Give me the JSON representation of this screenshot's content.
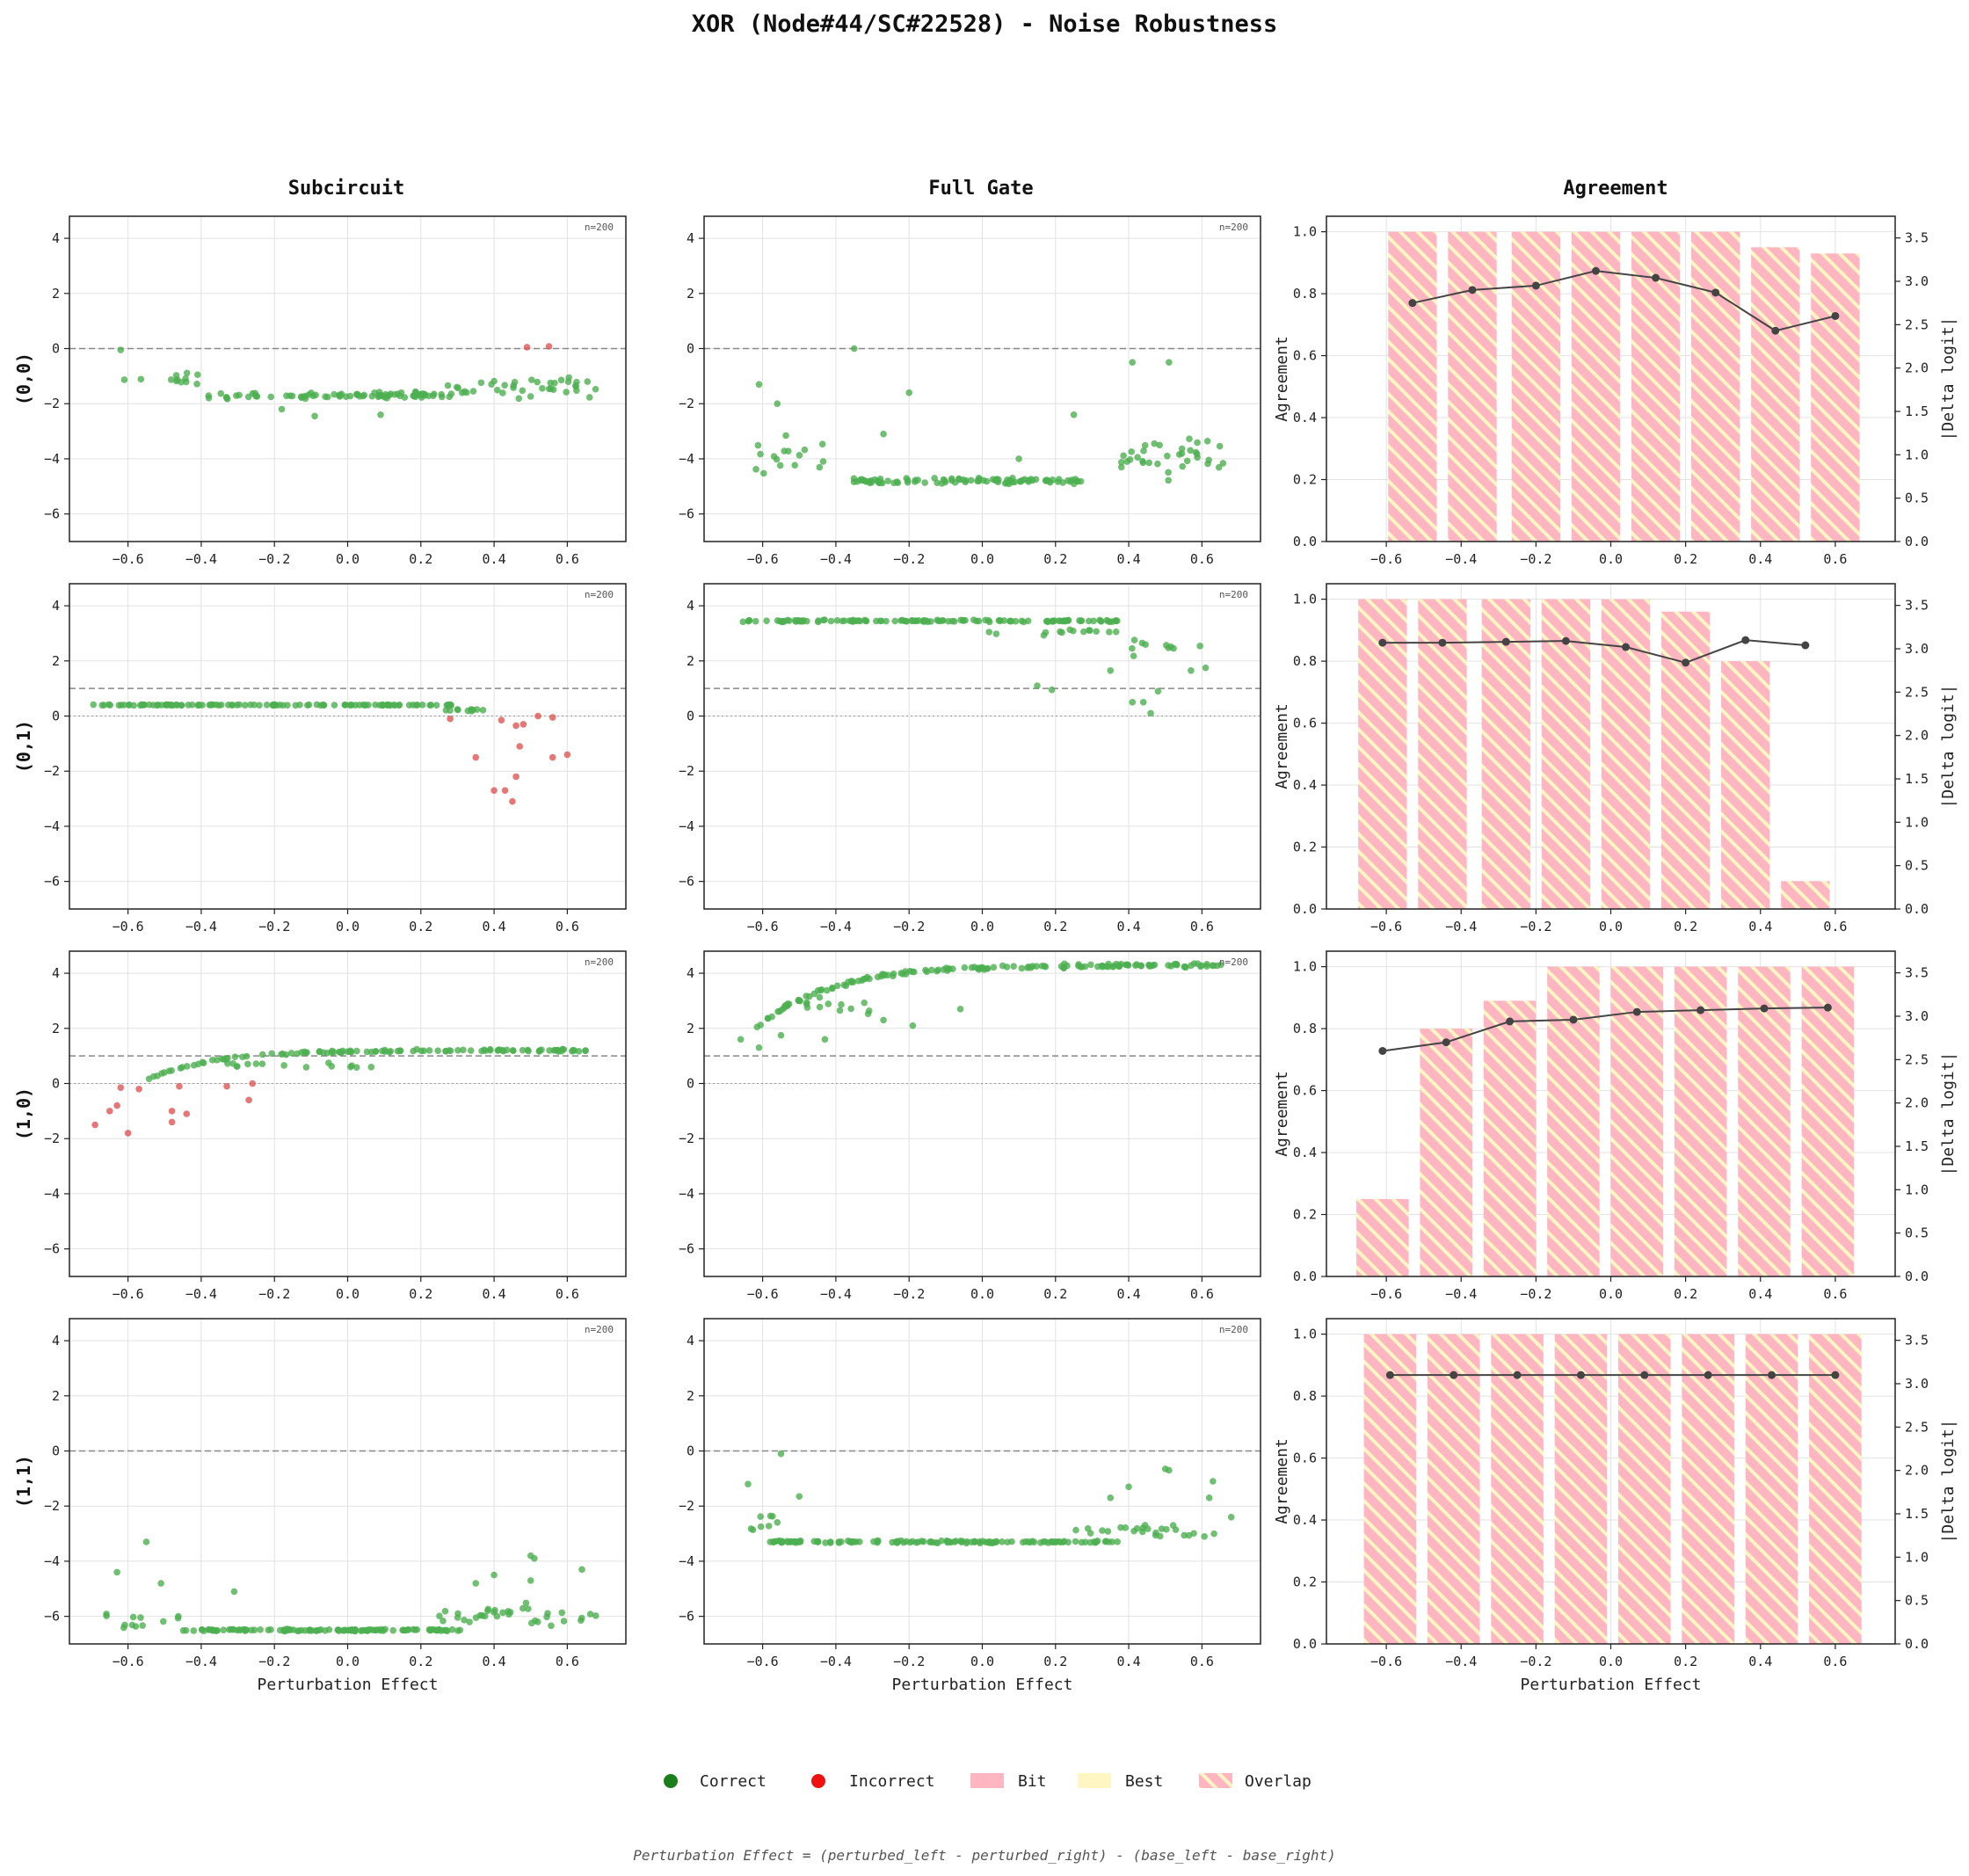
{
  "figure": {
    "title": "XOR (Node#44/SC#22528) - Noise Robustness",
    "column_titles": [
      "Subcircuit",
      "Full Gate",
      "Agreement"
    ],
    "row_labels": [
      "(0,0)",
      "(0,1)",
      "(1,0)",
      "(1,1)"
    ],
    "x_label": "Perturbation Effect",
    "agreement_ylabel": "Agreement",
    "delta_ylabel": "|Delta logit|",
    "n_label": "n=200",
    "footnote": "Perturbation Effect = (perturbed_left - perturbed_right) - (base_left - base_right)"
  },
  "legend": [
    {
      "label": "Correct",
      "kind": "dot",
      "color": "#1a7f1a"
    },
    {
      "label": "Incorrect",
      "kind": "dot",
      "color": "#ee1111"
    },
    {
      "label": "Bit",
      "kind": "patch",
      "color": "#ffb6c1"
    },
    {
      "label": "Best",
      "kind": "patch",
      "color": "#fff6c4"
    },
    {
      "label": "Overlap",
      "kind": "hatch",
      "color": "#ffb6c1"
    }
  ],
  "colors": {
    "correct": "#4caf50",
    "incorrect": "#e05555",
    "bit": "#ffb6c1",
    "best": "#fff6c4",
    "line": "#444444"
  },
  "chart_data": {
    "type": "scatter",
    "scatter_xlim": [
      -0.76,
      0.76
    ],
    "scatter_ylim": [
      -7,
      4.8
    ],
    "scatter_xticks": [
      -0.6,
      -0.4,
      -0.2,
      0.0,
      0.2,
      0.4,
      0.6
    ],
    "scatter_xtick_labels": [
      "−0.6",
      "−0.4",
      "−0.2",
      "0.0",
      "0.2",
      "0.4",
      "0.6"
    ],
    "scatter_yticks": [
      4,
      2,
      0,
      -2,
      -4,
      -6
    ],
    "scatter_ytick_labels": [
      "4",
      "2",
      "0",
      "−2",
      "−4",
      "−6"
    ],
    "agreement_ylim": [
      0,
      1.05
    ],
    "agreement_yticks": [
      0,
      0.2,
      0.4,
      0.6,
      0.8,
      1.0
    ],
    "agreement_ytick_labels": [
      "0.0",
      "0.2",
      "0.4",
      "0.6",
      "0.8",
      "1.0"
    ],
    "delta_ylim": [
      0,
      3.75
    ],
    "delta_yticks": [
      0,
      0.5,
      1.0,
      1.5,
      2.0,
      2.5,
      3.0,
      3.5
    ],
    "delta_ytick_labels": [
      "0.0",
      "0.5",
      "1.0",
      "1.5",
      "2.0",
      "2.5",
      "3.0",
      "3.5"
    ],
    "rows": [
      {
        "input": "(0,0)",
        "threshold": 0,
        "subcircuit": {
          "clusters": [
            {
              "x": [
                -0.38,
                0.26
              ],
              "y": -1.7,
              "spread": 0.15,
              "n": 80,
              "status": "correct"
            },
            {
              "x": [
                -0.62,
                -0.4
              ],
              "y": -1.1,
              "spread": 0.55,
              "n": 12,
              "status": "correct"
            },
            {
              "x": [
                0.26,
                0.68
              ],
              "y": -1.4,
              "spread": 0.5,
              "n": 40,
              "status": "correct"
            }
          ],
          "points": [
            {
              "x": 0.49,
              "y": 0.05,
              "status": "incorrect"
            },
            {
              "x": 0.55,
              "y": 0.08,
              "status": "incorrect"
            },
            {
              "x": -0.62,
              "y": -0.05,
              "status": "correct"
            },
            {
              "x": -0.18,
              "y": -2.2,
              "status": "correct"
            },
            {
              "x": -0.09,
              "y": -2.45,
              "status": "correct"
            },
            {
              "x": 0.09,
              "y": -2.4,
              "status": "correct"
            }
          ]
        },
        "full_gate": {
          "clusters": [
            {
              "x": [
                -0.36,
                0.28
              ],
              "y": -4.8,
              "spread": 0.13,
              "n": 95,
              "status": "correct"
            },
            {
              "x": [
                -0.62,
                -0.42
              ],
              "y": -3.9,
              "spread": 0.9,
              "n": 16,
              "status": "correct"
            },
            {
              "x": [
                0.38,
                0.66
              ],
              "y": -4.0,
              "spread": 1.0,
              "n": 35,
              "status": "correct"
            }
          ],
          "points": [
            {
              "x": -0.35,
              "y": 0.0,
              "status": "correct"
            },
            {
              "x": -0.61,
              "y": -1.3,
              "status": "correct"
            },
            {
              "x": -0.56,
              "y": -2.0,
              "status": "correct"
            },
            {
              "x": -0.2,
              "y": -1.6,
              "status": "correct"
            },
            {
              "x": 0.41,
              "y": -0.5,
              "status": "correct"
            },
            {
              "x": 0.51,
              "y": -0.5,
              "status": "correct"
            },
            {
              "x": 0.25,
              "y": -2.4,
              "status": "correct"
            },
            {
              "x": -0.27,
              "y": -3.1,
              "status": "correct"
            },
            {
              "x": 0.1,
              "y": -4.0,
              "status": "correct"
            }
          ]
        },
        "agreement": {
          "bins": [
            -0.53,
            -0.37,
            -0.2,
            -0.04,
            0.12,
            0.28,
            0.44,
            0.6
          ],
          "bar_width": 0.13,
          "values": [
            1.0,
            1.0,
            1.0,
            1.0,
            1.0,
            1.0,
            0.95,
            0.93
          ],
          "delta": [
            2.75,
            2.9,
            2.95,
            3.12,
            3.04,
            2.87,
            2.43,
            2.6
          ]
        }
      },
      {
        "input": "(0,1)",
        "threshold": 1,
        "subcircuit": {
          "clusters": [
            {
              "x": [
                -0.7,
                0.3
              ],
              "y": 0.4,
              "spread": 0.02,
              "n": 120,
              "status": "correct"
            },
            {
              "x": [
                0.24,
                0.4
              ],
              "y": 0.2,
              "spread": 0.1,
              "n": 10,
              "status": "correct"
            }
          ],
          "points": [
            {
              "x": 0.35,
              "y": -1.5,
              "status": "incorrect"
            },
            {
              "x": 0.4,
              "y": -2.7,
              "status": "incorrect"
            },
            {
              "x": 0.43,
              "y": -2.7,
              "status": "incorrect"
            },
            {
              "x": 0.45,
              "y": -3.1,
              "status": "incorrect"
            },
            {
              "x": 0.46,
              "y": -2.2,
              "status": "incorrect"
            },
            {
              "x": 0.47,
              "y": -1.1,
              "status": "incorrect"
            },
            {
              "x": 0.46,
              "y": -0.35,
              "status": "incorrect"
            },
            {
              "x": 0.48,
              "y": -0.3,
              "status": "incorrect"
            },
            {
              "x": 0.52,
              "y": 0.0,
              "status": "incorrect"
            },
            {
              "x": 0.56,
              "y": -0.05,
              "status": "incorrect"
            },
            {
              "x": 0.56,
              "y": -1.5,
              "status": "incorrect"
            },
            {
              "x": 0.6,
              "y": -1.4,
              "status": "incorrect"
            },
            {
              "x": 0.28,
              "y": -0.1,
              "status": "incorrect"
            },
            {
              "x": 0.42,
              "y": -0.15,
              "status": "incorrect"
            }
          ]
        },
        "full_gate": {
          "clusters": [
            {
              "x": [
                -0.66,
                0.38
              ],
              "y": 3.45,
              "spread": 0.05,
              "n": 130,
              "status": "correct"
            },
            {
              "x": [
                0.0,
                0.4
              ],
              "y": 3.1,
              "spread": 0.25,
              "n": 14,
              "status": "correct"
            },
            {
              "x": [
                0.4,
                0.6
              ],
              "y": 2.5,
              "spread": 0.6,
              "n": 10,
              "status": "correct"
            }
          ],
          "points": [
            {
              "x": 0.15,
              "y": 1.1,
              "status": "correct"
            },
            {
              "x": 0.19,
              "y": 0.95,
              "status": "correct"
            },
            {
              "x": 0.41,
              "y": 0.5,
              "status": "correct"
            },
            {
              "x": 0.44,
              "y": 0.5,
              "status": "correct"
            },
            {
              "x": 0.46,
              "y": 0.1,
              "status": "correct"
            },
            {
              "x": 0.48,
              "y": 0.9,
              "status": "correct"
            },
            {
              "x": 0.35,
              "y": 1.65,
              "status": "correct"
            },
            {
              "x": 0.61,
              "y": 1.75,
              "status": "correct"
            },
            {
              "x": 0.57,
              "y": 1.65,
              "status": "correct"
            }
          ]
        },
        "agreement": {
          "bins": [
            -0.61,
            -0.45,
            -0.28,
            -0.12,
            0.04,
            0.2,
            0.36,
            0.52
          ],
          "bar_width": 0.13,
          "values": [
            1.0,
            1.0,
            1.0,
            1.0,
            1.0,
            0.96,
            0.8,
            0.09
          ],
          "delta": [
            3.07,
            3.07,
            3.08,
            3.09,
            3.02,
            2.84,
            3.1,
            3.04
          ]
        }
      },
      {
        "input": "(1,0)",
        "threshold": 1,
        "subcircuit": {
          "curve": {
            "x": [
              -0.55,
              0.66
            ],
            "y0": 0.1,
            "y1": 1.2,
            "rate": 6,
            "n": 110,
            "spread": 0.06,
            "status": "correct"
          },
          "clusters": [
            {
              "x": [
                -0.35,
                0.1
              ],
              "y": 0.65,
              "spread": 0.2,
              "n": 15,
              "status": "correct"
            }
          ],
          "points": [
            {
              "x": -0.69,
              "y": -1.5,
              "status": "incorrect"
            },
            {
              "x": -0.65,
              "y": -1.0,
              "status": "incorrect"
            },
            {
              "x": -0.63,
              "y": -0.8,
              "status": "incorrect"
            },
            {
              "x": -0.62,
              "y": -0.15,
              "status": "incorrect"
            },
            {
              "x": -0.6,
              "y": -1.8,
              "status": "incorrect"
            },
            {
              "x": -0.57,
              "y": -0.2,
              "status": "incorrect"
            },
            {
              "x": -0.48,
              "y": -1.0,
              "status": "incorrect"
            },
            {
              "x": -0.48,
              "y": -1.4,
              "status": "incorrect"
            },
            {
              "x": -0.46,
              "y": -0.1,
              "status": "incorrect"
            },
            {
              "x": -0.44,
              "y": -1.1,
              "status": "incorrect"
            },
            {
              "x": -0.33,
              "y": -0.1,
              "status": "incorrect"
            },
            {
              "x": -0.27,
              "y": -0.6,
              "status": "incorrect"
            },
            {
              "x": -0.26,
              "y": 0.0,
              "status": "incorrect"
            }
          ]
        },
        "full_gate": {
          "curve": {
            "x": [
              -0.62,
              0.66
            ],
            "y0": 2.0,
            "y1": 4.3,
            "rate": 5,
            "n": 150,
            "spread": 0.1,
            "status": "correct"
          },
          "clusters": [
            {
              "x": [
                -0.55,
                -0.3
              ],
              "y": 2.8,
              "spread": 0.6,
              "n": 12,
              "status": "correct"
            }
          ],
          "points": [
            {
              "x": -0.66,
              "y": 1.6,
              "status": "correct"
            },
            {
              "x": -0.61,
              "y": 1.3,
              "status": "correct"
            },
            {
              "x": -0.55,
              "y": 1.75,
              "status": "correct"
            },
            {
              "x": -0.43,
              "y": 1.6,
              "status": "correct"
            },
            {
              "x": -0.27,
              "y": 2.3,
              "status": "correct"
            },
            {
              "x": -0.19,
              "y": 2.1,
              "status": "correct"
            },
            {
              "x": -0.06,
              "y": 2.7,
              "status": "correct"
            }
          ]
        },
        "agreement": {
          "bins": [
            -0.61,
            -0.44,
            -0.27,
            -0.1,
            0.07,
            0.24,
            0.41,
            0.58
          ],
          "bar_width": 0.14,
          "values": [
            0.25,
            0.8,
            0.89,
            1.0,
            1.0,
            1.0,
            1.0,
            1.0
          ],
          "delta": [
            2.6,
            2.7,
            2.94,
            2.96,
            3.05,
            3.07,
            3.09,
            3.1
          ]
        }
      },
      {
        "input": "(1,1)",
        "threshold": 0,
        "subcircuit": {
          "clusters": [
            {
              "x": [
                -0.45,
                0.32
              ],
              "y": -6.5,
              "spread": 0.05,
              "n": 120,
              "status": "correct"
            },
            {
              "x": [
                -0.66,
                -0.45
              ],
              "y": -6.2,
              "spread": 0.5,
              "n": 12,
              "status": "correct"
            },
            {
              "x": [
                0.25,
                0.68
              ],
              "y": -6.0,
              "spread": 0.6,
              "n": 35,
              "status": "correct"
            }
          ],
          "points": [
            {
              "x": -0.55,
              "y": -3.3,
              "status": "correct"
            },
            {
              "x": -0.63,
              "y": -4.4,
              "status": "correct"
            },
            {
              "x": -0.31,
              "y": -5.1,
              "status": "correct"
            },
            {
              "x": -0.51,
              "y": -4.8,
              "status": "correct"
            },
            {
              "x": 0.35,
              "y": -4.8,
              "status": "correct"
            },
            {
              "x": 0.4,
              "y": -4.5,
              "status": "correct"
            },
            {
              "x": 0.5,
              "y": -3.8,
              "status": "correct"
            },
            {
              "x": 0.51,
              "y": -3.9,
              "status": "correct"
            },
            {
              "x": 0.64,
              "y": -4.3,
              "status": "correct"
            },
            {
              "x": 0.5,
              "y": -4.7,
              "status": "correct"
            }
          ]
        },
        "full_gate": {
          "clusters": [
            {
              "x": [
                -0.58,
                0.38
              ],
              "y": -3.3,
              "spread": 0.06,
              "n": 130,
              "status": "correct"
            },
            {
              "x": [
                0.25,
                0.65
              ],
              "y": -2.9,
              "spread": 0.3,
              "n": 25,
              "status": "correct"
            },
            {
              "x": [
                -0.66,
                -0.5
              ],
              "y": -2.6,
              "spread": 0.5,
              "n": 8,
              "status": "correct"
            }
          ],
          "points": [
            {
              "x": -0.55,
              "y": -0.1,
              "status": "correct"
            },
            {
              "x": -0.64,
              "y": -1.2,
              "status": "correct"
            },
            {
              "x": -0.5,
              "y": -1.65,
              "status": "correct"
            },
            {
              "x": 0.35,
              "y": -1.7,
              "status": "correct"
            },
            {
              "x": 0.4,
              "y": -1.3,
              "status": "correct"
            },
            {
              "x": 0.5,
              "y": -0.65,
              "status": "correct"
            },
            {
              "x": 0.51,
              "y": -0.7,
              "status": "correct"
            },
            {
              "x": 0.63,
              "y": -1.1,
              "status": "correct"
            },
            {
              "x": 0.62,
              "y": -1.7,
              "status": "correct"
            },
            {
              "x": 0.68,
              "y": -2.4,
              "status": "correct"
            }
          ]
        },
        "agreement": {
          "bins": [
            -0.59,
            -0.42,
            -0.25,
            -0.08,
            0.09,
            0.26,
            0.43,
            0.6
          ],
          "bar_width": 0.14,
          "values": [
            1.0,
            1.0,
            1.0,
            1.0,
            1.0,
            1.0,
            1.0,
            1.0
          ],
          "delta": [
            3.1,
            3.1,
            3.1,
            3.1,
            3.1,
            3.1,
            3.1,
            3.1
          ]
        }
      }
    ]
  }
}
